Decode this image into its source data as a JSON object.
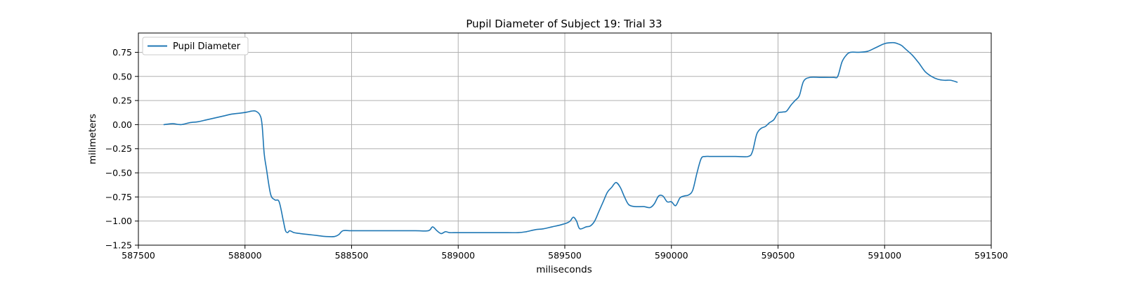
{
  "chart_data": {
    "type": "line",
    "title": "Pupil Diameter of Subject 19: Trial 33",
    "xlabel": "miliseconds",
    "ylabel": "milimeters",
    "xlim": [
      587500,
      591500
    ],
    "ylim": [
      -1.25,
      0.95
    ],
    "xticks": [
      587500,
      588000,
      588500,
      589000,
      589500,
      590000,
      590500,
      591000,
      591500
    ],
    "yticks": [
      -1.25,
      -1.0,
      -0.75,
      -0.5,
      -0.25,
      0.0,
      0.25,
      0.5,
      0.75
    ],
    "xtick_labels": [
      "587500",
      "588000",
      "588500",
      "589000",
      "589500",
      "590000",
      "590500",
      "591000",
      "591500"
    ],
    "ytick_labels": [
      "−1.25",
      "−1.00",
      "−0.75",
      "−0.50",
      "−0.25",
      "0.00",
      "0.25",
      "0.50",
      "0.75"
    ],
    "grid": true,
    "legend_position": "top-left",
    "series": [
      {
        "name": "Pupil Diameter",
        "color": "#1f77b4",
        "x": [
          587620,
          587660,
          587700,
          587740,
          587780,
          587820,
          587860,
          587900,
          587940,
          587980,
          588010,
          588030,
          588050,
          588070,
          588080,
          588090,
          588100,
          588120,
          588140,
          588160,
          588180,
          588190,
          588200,
          588210,
          588230,
          588260,
          588300,
          588340,
          588380,
          588420,
          588440,
          588460,
          588500,
          588600,
          588700,
          588800,
          588860,
          588880,
          588900,
          588920,
          588940,
          588960,
          589000,
          589100,
          589200,
          589280,
          589320,
          589360,
          589400,
          589440,
          589480,
          589510,
          589525,
          589540,
          589555,
          589570,
          589600,
          589620,
          589640,
          589660,
          589680,
          589700,
          589720,
          589740,
          589760,
          589780,
          589800,
          589830,
          589870,
          589900,
          589920,
          589940,
          589960,
          589980,
          590000,
          590020,
          590040,
          590060,
          590080,
          590100,
          590120,
          590140,
          590160,
          590180,
          590200,
          590250,
          590300,
          590360,
          590380,
          590400,
          590420,
          590440,
          590460,
          590480,
          590500,
          590520,
          590540,
          590560,
          590580,
          590600,
          590620,
          590650,
          590700,
          590760,
          590780,
          590800,
          590820,
          590840,
          590880,
          590920,
          590960,
          591000,
          591040,
          591060,
          591080,
          591100,
          591130,
          591160,
          591190,
          591220,
          591250,
          591280,
          591310,
          591340
        ],
        "values": [
          0.0,
          0.01,
          0.0,
          0.02,
          0.03,
          0.05,
          0.07,
          0.09,
          0.11,
          0.12,
          0.13,
          0.14,
          0.14,
          0.1,
          0.0,
          -0.3,
          -0.45,
          -0.72,
          -0.78,
          -0.8,
          -1.0,
          -1.1,
          -1.12,
          -1.1,
          -1.12,
          -1.13,
          -1.14,
          -1.15,
          -1.16,
          -1.16,
          -1.14,
          -1.1,
          -1.1,
          -1.1,
          -1.1,
          -1.1,
          -1.1,
          -1.06,
          -1.1,
          -1.13,
          -1.11,
          -1.12,
          -1.12,
          -1.12,
          -1.12,
          -1.12,
          -1.11,
          -1.09,
          -1.08,
          -1.06,
          -1.04,
          -1.02,
          -1.0,
          -0.96,
          -1.0,
          -1.08,
          -1.06,
          -1.05,
          -1.0,
          -0.9,
          -0.8,
          -0.7,
          -0.65,
          -0.6,
          -0.65,
          -0.75,
          -0.83,
          -0.85,
          -0.85,
          -0.86,
          -0.82,
          -0.74,
          -0.74,
          -0.8,
          -0.8,
          -0.84,
          -0.76,
          -0.74,
          -0.73,
          -0.68,
          -0.5,
          -0.35,
          -0.33,
          -0.33,
          -0.33,
          -0.33,
          -0.33,
          -0.33,
          -0.28,
          -0.1,
          -0.04,
          -0.02,
          0.02,
          0.05,
          0.12,
          0.13,
          0.14,
          0.2,
          0.25,
          0.3,
          0.45,
          0.49,
          0.49,
          0.49,
          0.5,
          0.65,
          0.72,
          0.75,
          0.75,
          0.76,
          0.8,
          0.84,
          0.85,
          0.84,
          0.82,
          0.78,
          0.72,
          0.64,
          0.55,
          0.5,
          0.47,
          0.46,
          0.46,
          0.44
        ]
      }
    ]
  }
}
